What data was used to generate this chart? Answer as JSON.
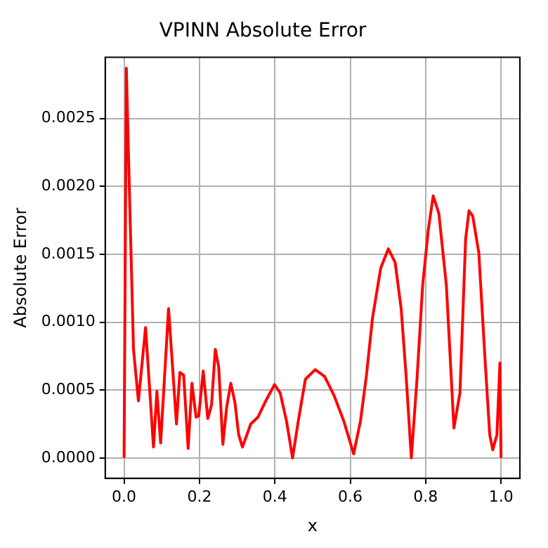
{
  "chart_data": {
    "type": "line",
    "title": "VPINN Absolute Error",
    "xlabel": "x",
    "ylabel": "Absolute Error",
    "series": [
      {
        "color": "#ff0000",
        "x": [
          0,
          0.006,
          0.012,
          0.025,
          0.038,
          0.057,
          0.078,
          0.087,
          0.097,
          0.118,
          0.139,
          0.148,
          0.158,
          0.17,
          0.18,
          0.191,
          0.198,
          0.21,
          0.222,
          0.232,
          0.242,
          0.251,
          0.262,
          0.272,
          0.283,
          0.294,
          0.304,
          0.314,
          0.336,
          0.355,
          0.374,
          0.399,
          0.414,
          0.431,
          0.447,
          0.462,
          0.481,
          0.507,
          0.532,
          0.557,
          0.583,
          0.609,
          0.627,
          0.643,
          0.659,
          0.681,
          0.701,
          0.719,
          0.735,
          0.748,
          0.762,
          0.777,
          0.792,
          0.807,
          0.82,
          0.835,
          0.855,
          0.875,
          0.891,
          0.906,
          0.915,
          0.925,
          0.941,
          0.957,
          0.97,
          0.978,
          0.989,
          0.997,
          1.0
        ],
        "values": [
          0,
          0.00287,
          0.0022,
          0.0008,
          0.00042,
          0.00096,
          8e-05,
          0.00049,
          0.00011,
          0.0011,
          0.00025,
          0.00063,
          0.00061,
          7e-05,
          0.00055,
          0.0003,
          0.00031,
          0.00064,
          0.00029,
          0.00039,
          0.0008,
          0.00067,
          0.0001,
          0.00037,
          0.00055,
          0.00041,
          0.00017,
          8e-05,
          0.00025,
          0.0003,
          0.00041,
          0.00054,
          0.00048,
          0.00027,
          0,
          0.00027,
          0.00058,
          0.00065,
          0.0006,
          0.00046,
          0.00027,
          3e-05,
          0.00027,
          0.00061,
          0.00103,
          0.0014,
          0.00154,
          0.00144,
          0.0011,
          0.00061,
          0,
          0.00058,
          0.00127,
          0.00168,
          0.00193,
          0.0018,
          0.00127,
          0.00022,
          0.00048,
          0.00161,
          0.00182,
          0.00178,
          0.00151,
          0.00075,
          0.00017,
          6e-05,
          0.00017,
          0.0007,
          0
        ]
      }
    ],
    "xlim": [
      -0.05,
      1.05
    ],
    "ylim": [
      -0.00015,
      0.00295
    ],
    "xticks": [
      {
        "value": 0,
        "label": "0.0"
      },
      {
        "value": 0.2,
        "label": "0.2"
      },
      {
        "value": 0.4,
        "label": "0.4"
      },
      {
        "value": 0.6,
        "label": "0.6"
      },
      {
        "value": 0.8,
        "label": "0.8"
      },
      {
        "value": 1,
        "label": "1.0"
      }
    ],
    "yticks": [
      {
        "value": 0,
        "label": "0.0000"
      },
      {
        "value": 0.0005,
        "label": "0.0005"
      },
      {
        "value": 0.001,
        "label": "0.0010"
      },
      {
        "value": 0.0015,
        "label": "0.0015"
      },
      {
        "value": 0.002,
        "label": "0.0020"
      },
      {
        "value": 0.0025,
        "label": "0.0025"
      }
    ],
    "grid": true,
    "marker": "none",
    "line_style": "solid",
    "legend": false
  }
}
